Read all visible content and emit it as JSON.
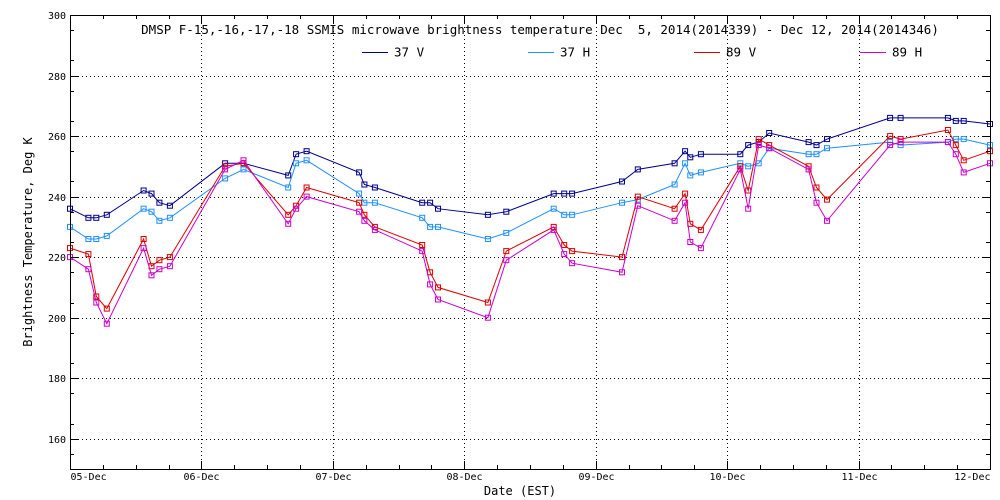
{
  "chart_data": {
    "type": "line",
    "title": "DMSP F-15,-16,-17,-18 SSMIS microwave brightness temperature Dec  5, 2014(2014339) - Dec 12, 2014(2014346)",
    "xlabel": "Date (EST)",
    "ylabel": "Brightness Temperature, Deg K",
    "xlim": [
      0,
      7
    ],
    "ylim": [
      150,
      300
    ],
    "yticks": [
      160,
      180,
      200,
      220,
      240,
      260,
      280,
      300
    ],
    "xtick_labels": [
      "05-Dec",
      "06-Dec",
      "07-Dec",
      "08-Dec",
      "09-Dec",
      "10-Dec",
      "11-Dec",
      "12-Dec"
    ],
    "grid": true,
    "legend_position": "top-center",
    "series": [
      {
        "name": "37 V",
        "color": "#00008b",
        "x": [
          0.0,
          0.14,
          0.2,
          0.28,
          0.56,
          0.62,
          0.68,
          0.76,
          1.18,
          1.32,
          1.66,
          1.72,
          1.8,
          2.2,
          2.24,
          2.32,
          2.68,
          2.74,
          2.8,
          3.18,
          3.32,
          3.68,
          3.76,
          3.82,
          4.2,
          4.32,
          4.6,
          4.68,
          4.72,
          4.8,
          5.1,
          5.16,
          5.24,
          5.32,
          5.62,
          5.68,
          5.76,
          6.24,
          6.32,
          6.68,
          6.74,
          6.8,
          7.0
        ],
        "y": [
          236,
          233,
          233,
          234,
          242,
          241,
          238,
          237,
          251,
          251,
          247,
          254,
          255,
          248,
          244,
          243,
          238,
          238,
          236,
          234,
          235,
          241,
          241,
          241,
          245,
          249,
          251,
          255,
          253,
          254,
          254,
          257,
          258,
          261,
          258,
          257,
          259,
          266,
          266,
          266,
          265,
          265,
          264
        ]
      },
      {
        "name": "37 H",
        "color": "#1e90ff",
        "x": [
          0.0,
          0.14,
          0.2,
          0.28,
          0.56,
          0.62,
          0.68,
          0.76,
          1.18,
          1.32,
          1.66,
          1.72,
          1.8,
          2.2,
          2.24,
          2.32,
          2.68,
          2.74,
          2.8,
          3.18,
          3.32,
          3.68,
          3.76,
          3.82,
          4.2,
          4.32,
          4.6,
          4.68,
          4.72,
          4.8,
          5.1,
          5.16,
          5.24,
          5.32,
          5.62,
          5.68,
          5.76,
          6.24,
          6.32,
          6.68,
          6.74,
          6.8,
          7.0
        ],
        "y": [
          230,
          226,
          226,
          227,
          236,
          235,
          232,
          233,
          246,
          249,
          243,
          251,
          252,
          241,
          238,
          238,
          233,
          230,
          230,
          226,
          228,
          236,
          234,
          234,
          238,
          239,
          244,
          251,
          247,
          248,
          251,
          250,
          251,
          256,
          254,
          254,
          256,
          258,
          257,
          258,
          259,
          259,
          257
        ]
      },
      {
        "name": "89 V",
        "color": "#dd0000",
        "x": [
          0.0,
          0.14,
          0.2,
          0.28,
          0.56,
          0.62,
          0.68,
          0.76,
          1.18,
          1.32,
          1.66,
          1.72,
          1.8,
          2.2,
          2.24,
          2.32,
          2.68,
          2.74,
          2.8,
          3.18,
          3.32,
          3.68,
          3.76,
          3.82,
          4.2,
          4.32,
          4.6,
          4.68,
          4.72,
          4.8,
          5.1,
          5.16,
          5.24,
          5.32,
          5.62,
          5.68,
          5.76,
          6.24,
          6.32,
          6.68,
          6.74,
          6.8,
          7.0
        ],
        "y": [
          223,
          221,
          207,
          203,
          226,
          217,
          219,
          220,
          250,
          251,
          234,
          237,
          243,
          238,
          234,
          230,
          224,
          215,
          210,
          205,
          222,
          230,
          224,
          222,
          220,
          240,
          236,
          241,
          231,
          229,
          250,
          242,
          259,
          257,
          250,
          243,
          239,
          260,
          259,
          262,
          257,
          252,
          255
        ]
      },
      {
        "name": "89 H",
        "color": "#cc00cc",
        "x": [
          0.0,
          0.14,
          0.2,
          0.28,
          0.56,
          0.62,
          0.68,
          0.76,
          1.18,
          1.32,
          1.66,
          1.72,
          1.8,
          2.2,
          2.24,
          2.32,
          2.68,
          2.74,
          2.8,
          3.18,
          3.32,
          3.68,
          3.76,
          3.82,
          4.2,
          4.32,
          4.6,
          4.68,
          4.72,
          4.8,
          5.1,
          5.16,
          5.24,
          5.32,
          5.62,
          5.68,
          5.76,
          6.24,
          6.32,
          6.68,
          6.74,
          6.8,
          7.0
        ],
        "y": [
          220,
          216,
          205,
          198,
          223,
          214,
          216,
          217,
          249,
          252,
          231,
          236,
          240,
          235,
          232,
          229,
          222,
          211,
          206,
          200,
          219,
          229,
          221,
          218,
          215,
          237,
          232,
          238,
          225,
          223,
          249,
          236,
          257,
          256,
          249,
          238,
          232,
          257,
          258,
          258,
          254,
          248,
          251
        ]
      }
    ]
  }
}
